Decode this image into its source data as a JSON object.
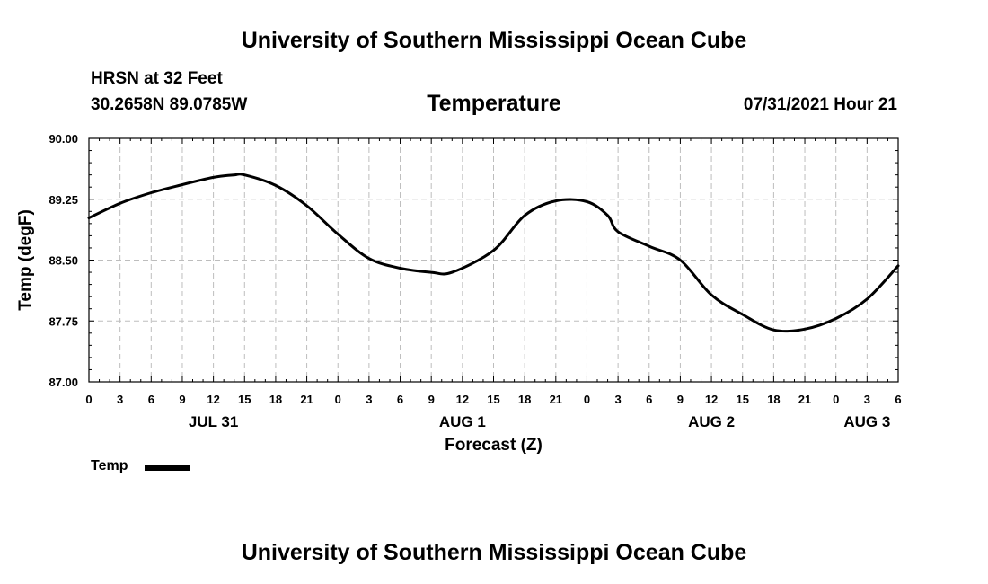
{
  "header": {
    "title": "University of Southern Mississippi Ocean Cube",
    "station": "HRSN at 32 Feet",
    "coords": "30.2658N  89.0785W",
    "datetime": "07/31/2021 Hour 21"
  },
  "footer": {
    "title": "University of Southern Mississippi Ocean Cube"
  },
  "legend": {
    "label": "Temp",
    "color": "#000000"
  },
  "chart_data": {
    "type": "line",
    "title": "Temperature",
    "xlabel": "Forecast (Z)",
    "ylabel": "Temp (degF)",
    "ylim": [
      87.0,
      90.0
    ],
    "xlim": [
      0,
      78
    ],
    "y_ticks": [
      "87.00",
      "87.75",
      "88.50",
      "89.25",
      "90.00"
    ],
    "y_tick_values": [
      87.0,
      87.75,
      88.5,
      89.25,
      90.0
    ],
    "x_tick_labels": [
      "0",
      "3",
      "6",
      "9",
      "12",
      "15",
      "18",
      "21",
      "0",
      "3",
      "6",
      "9",
      "12",
      "15",
      "18",
      "21",
      "0",
      "3",
      "6",
      "9",
      "12",
      "15",
      "18",
      "21",
      "0",
      "3",
      "6"
    ],
    "date_labels": [
      {
        "label": "JUL 31",
        "hour": 12
      },
      {
        "label": "AUG 1",
        "hour": 36
      },
      {
        "label": "AUG 2",
        "hour": 60
      },
      {
        "label": "AUG 3",
        "hour": 75
      }
    ],
    "grid": true,
    "series": [
      {
        "name": "Temp",
        "x": [
          0,
          3,
          6,
          9,
          12,
          14,
          15,
          18,
          21,
          24,
          27,
          30,
          33,
          35,
          39,
          42,
          45,
          48,
          50,
          51,
          54,
          57,
          60,
          63,
          66,
          69,
          72,
          75,
          78
        ],
        "values": [
          89.02,
          89.2,
          89.33,
          89.43,
          89.52,
          89.55,
          89.55,
          89.42,
          89.17,
          88.82,
          88.52,
          88.4,
          88.35,
          88.35,
          88.62,
          89.05,
          89.23,
          89.22,
          89.05,
          88.85,
          88.67,
          88.5,
          88.07,
          87.83,
          87.64,
          87.65,
          87.78,
          88.02,
          88.43
        ]
      }
    ]
  }
}
